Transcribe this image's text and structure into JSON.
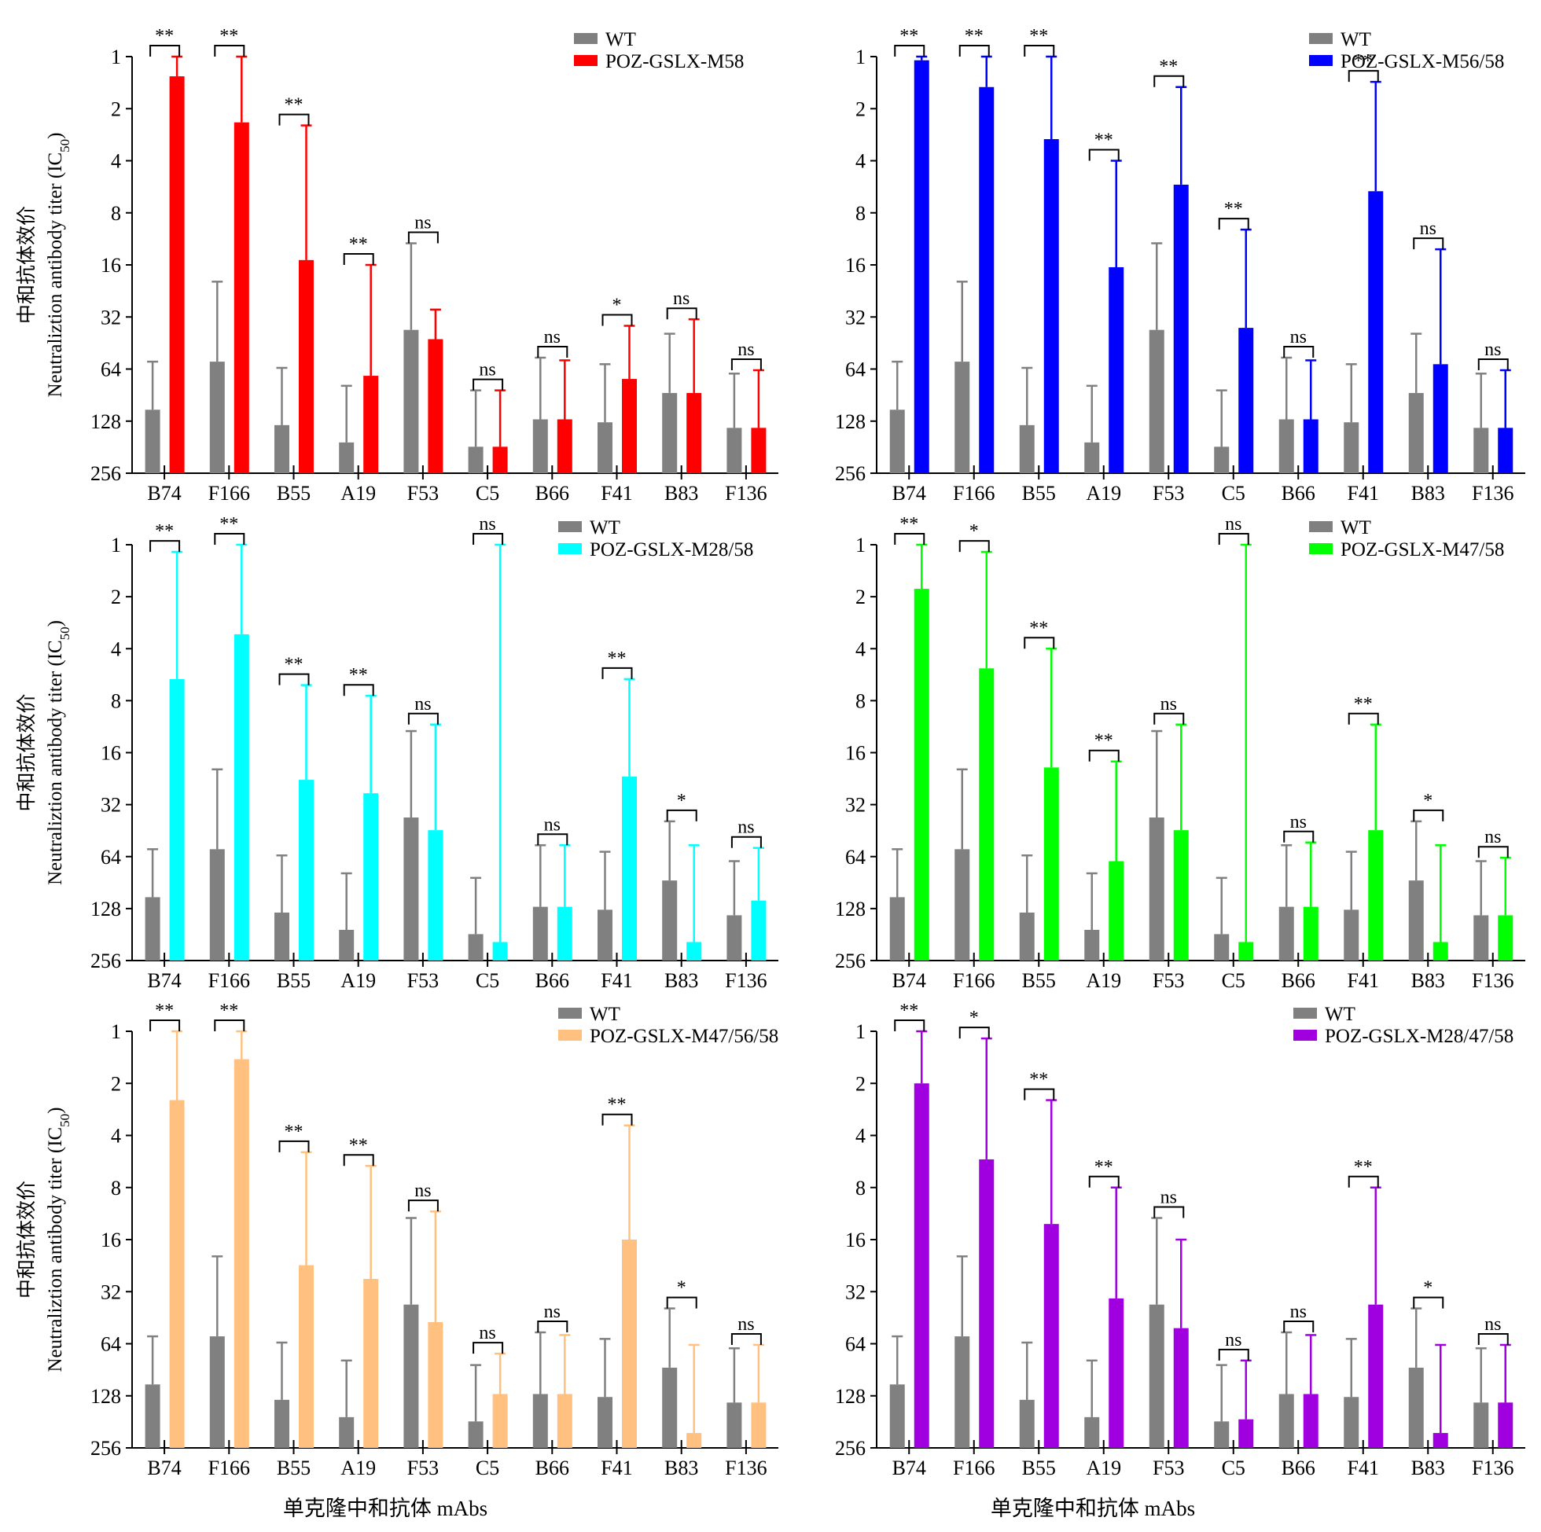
{
  "figure": {
    "common_ylabel_cn": "中和抗体效价",
    "common_ylabel_en": "Neutraliztion antibody titer (IC",
    "common_ylabel_sub": "50",
    "common_ylabel_close": ")",
    "common_xlabel": "单克隆中和抗体 mAbs"
  },
  "colors": {
    "wt": "#808080",
    "M58": "#ff0000",
    "M56_58": "#0000ff",
    "M28_58": "#00ffff",
    "M47_58": "#00ff00",
    "M47_56_58": "#ffc080",
    "M28_47_58": "#a000e0"
  },
  "chart_data": [
    {
      "type": "bar",
      "y_scale": "log2-reversed",
      "yticks": [
        "1",
        "2",
        "4",
        "8",
        "16",
        "32",
        "64",
        "128",
        "256"
      ],
      "ylim": [
        1,
        256
      ],
      "categories": [
        "B74",
        "F166",
        "B55",
        "A19",
        "F53",
        "C5",
        "B66",
        "F41",
        "B83",
        "F136"
      ],
      "series": [
        {
          "name": "WT",
          "values": [
            110,
            58,
            135,
            170,
            38,
            180,
            125,
            130,
            88,
            140
          ],
          "err": [
            52,
            38,
            72,
            90,
            26,
            95,
            70,
            70,
            48,
            72
          ]
        },
        {
          "name": "POZ-GSLX-M58",
          "values": [
            1.3,
            2.4,
            15,
            70,
            43,
            180,
            125,
            73,
            88,
            140
          ],
          "err": [
            1.1,
            1.4,
            12.5,
            54,
            14,
            95,
            68,
            37,
            55,
            75
          ]
        }
      ],
      "significance": [
        "**",
        "**",
        "**",
        "**",
        "ns",
        "ns",
        "ns",
        "*",
        "ns",
        "ns"
      ],
      "legend_position": "top-right"
    },
    {
      "type": "bar",
      "y_scale": "log2-reversed",
      "yticks": [
        "1",
        "2",
        "4",
        "8",
        "16",
        "32",
        "64",
        "128",
        "256"
      ],
      "ylim": [
        1,
        256
      ],
      "categories": [
        "B74",
        "F166",
        "B55",
        "A19",
        "F53",
        "C5",
        "B66",
        "F41",
        "B83",
        "F136"
      ],
      "series": [
        {
          "name": "WT",
          "values": [
            110,
            58,
            135,
            170,
            38,
            180,
            125,
            130,
            88,
            140
          ],
          "err": [
            52,
            38,
            72,
            90,
            26,
            95,
            70,
            70,
            48,
            72
          ]
        },
        {
          "name": "POZ-GSLX-M56/58",
          "values": [
            1.05,
            1.5,
            3,
            16.5,
            5.5,
            37,
            125,
            6,
            60,
            140
          ],
          "err": [
            0.95,
            1.2,
            2.2,
            12.5,
            4,
            27,
            68,
            4.6,
            47,
            75
          ]
        }
      ],
      "significance": [
        "**",
        "**",
        "**",
        "**",
        "**",
        "**",
        "ns",
        "**",
        "ns",
        "ns"
      ],
      "legend_position": "top-right"
    },
    {
      "type": "bar",
      "y_scale": "log2-reversed",
      "yticks": [
        "1",
        "2",
        "4",
        "8",
        "16",
        "32",
        "64",
        "128",
        "256"
      ],
      "ylim": [
        1,
        256
      ],
      "categories": [
        "B74",
        "F166",
        "B55",
        "A19",
        "F53",
        "C5",
        "B66",
        "F41",
        "B83",
        "F136"
      ],
      "series": [
        {
          "name": "WT",
          "values": [
            110,
            58,
            135,
            170,
            38,
            180,
            125,
            130,
            88,
            140
          ],
          "err": [
            52,
            38,
            72,
            90,
            26,
            95,
            70,
            70,
            48,
            72
          ]
        },
        {
          "name": "POZ-GSLX-M28/58",
          "values": [
            6,
            3.3,
            23,
            27.5,
            45,
            200,
            125,
            22,
            200,
            115
          ],
          "err": [
            4.9,
            2.5,
            16.5,
            20,
            34,
            200,
            70,
            16,
            145,
            58
          ]
        }
      ],
      "significance": [
        "**",
        "**",
        "**",
        "**",
        "ns",
        "ns",
        "ns",
        "**",
        "*",
        "ns"
      ],
      "legend_position": "top-right"
    },
    {
      "type": "bar",
      "y_scale": "log2-reversed",
      "yticks": [
        "1",
        "2",
        "4",
        "8",
        "16",
        "32",
        "64",
        "128",
        "256"
      ],
      "ylim": [
        1,
        256
      ],
      "categories": [
        "B74",
        "F166",
        "B55",
        "A19",
        "F53",
        "C5",
        "B66",
        "F41",
        "B83",
        "F136"
      ],
      "series": [
        {
          "name": "WT",
          "values": [
            110,
            58,
            135,
            170,
            38,
            180,
            125,
            130,
            88,
            140
          ],
          "err": [
            52,
            38,
            72,
            90,
            26,
            95,
            70,
            70,
            48,
            72
          ]
        },
        {
          "name": "POZ-GSLX-M47/58",
          "values": [
            1.8,
            5.2,
            19.5,
            68,
            45,
            200,
            125,
            45,
            200,
            140
          ],
          "err": [
            1.4,
            4.1,
            15.5,
            50,
            34,
            200,
            72,
            34,
            145,
            75
          ]
        }
      ],
      "significance": [
        "**",
        "*",
        "**",
        "**",
        "ns",
        "ns",
        "ns",
        "**",
        "*",
        "ns"
      ],
      "legend_position": "top-right"
    },
    {
      "type": "bar",
      "y_scale": "log2-reversed",
      "yticks": [
        "1",
        "2",
        "4",
        "8",
        "16",
        "32",
        "64",
        "128",
        "256"
      ],
      "ylim": [
        1,
        256
      ],
      "categories": [
        "B74",
        "F166",
        "B55",
        "A19",
        "F53",
        "C5",
        "B66",
        "F41",
        "B83",
        "F136"
      ],
      "series": [
        {
          "name": "WT",
          "values": [
            110,
            58,
            135,
            170,
            38,
            180,
            125,
            130,
            88,
            140
          ],
          "err": [
            52,
            38,
            72,
            90,
            26,
            95,
            70,
            70,
            48,
            72
          ]
        },
        {
          "name": "POZ-GSLX-M47/56/58",
          "values": [
            2.5,
            1.45,
            22.5,
            27,
            48,
            125,
            125,
            16,
            210,
            140
          ],
          "err": [
            2,
            1.1,
            17.5,
            21,
            37,
            52,
            68,
            12.5,
            145,
            75
          ]
        }
      ],
      "significance": [
        "**",
        "**",
        "**",
        "**",
        "ns",
        "ns",
        "ns",
        "**",
        "*",
        "ns"
      ],
      "legend_position": "top-right"
    },
    {
      "type": "bar",
      "y_scale": "log2-reversed",
      "yticks": [
        "1",
        "2",
        "4",
        "8",
        "16",
        "32",
        "64",
        "128",
        "256"
      ],
      "ylim": [
        1,
        256
      ],
      "categories": [
        "B74",
        "F166",
        "B55",
        "A19",
        "F53",
        "C5",
        "B66",
        "F41",
        "B83",
        "F136"
      ],
      "series": [
        {
          "name": "WT",
          "values": [
            110,
            58,
            135,
            170,
            38,
            180,
            125,
            130,
            88,
            140
          ],
          "err": [
            52,
            38,
            72,
            90,
            26,
            95,
            70,
            70,
            48,
            72
          ]
        },
        {
          "name": "POZ-GSLX-M28/47/58",
          "values": [
            2,
            5.5,
            13,
            35,
            52,
            175,
            125,
            38,
            210,
            140
          ],
          "err": [
            1.6,
            4.4,
            10.5,
            27,
            36,
            95,
            68,
            30,
            145,
            75
          ]
        }
      ],
      "significance": [
        "**",
        "*",
        "**",
        "**",
        "ns",
        "ns",
        "ns",
        "**",
        "*",
        "ns"
      ],
      "legend_position": "top-right"
    }
  ]
}
